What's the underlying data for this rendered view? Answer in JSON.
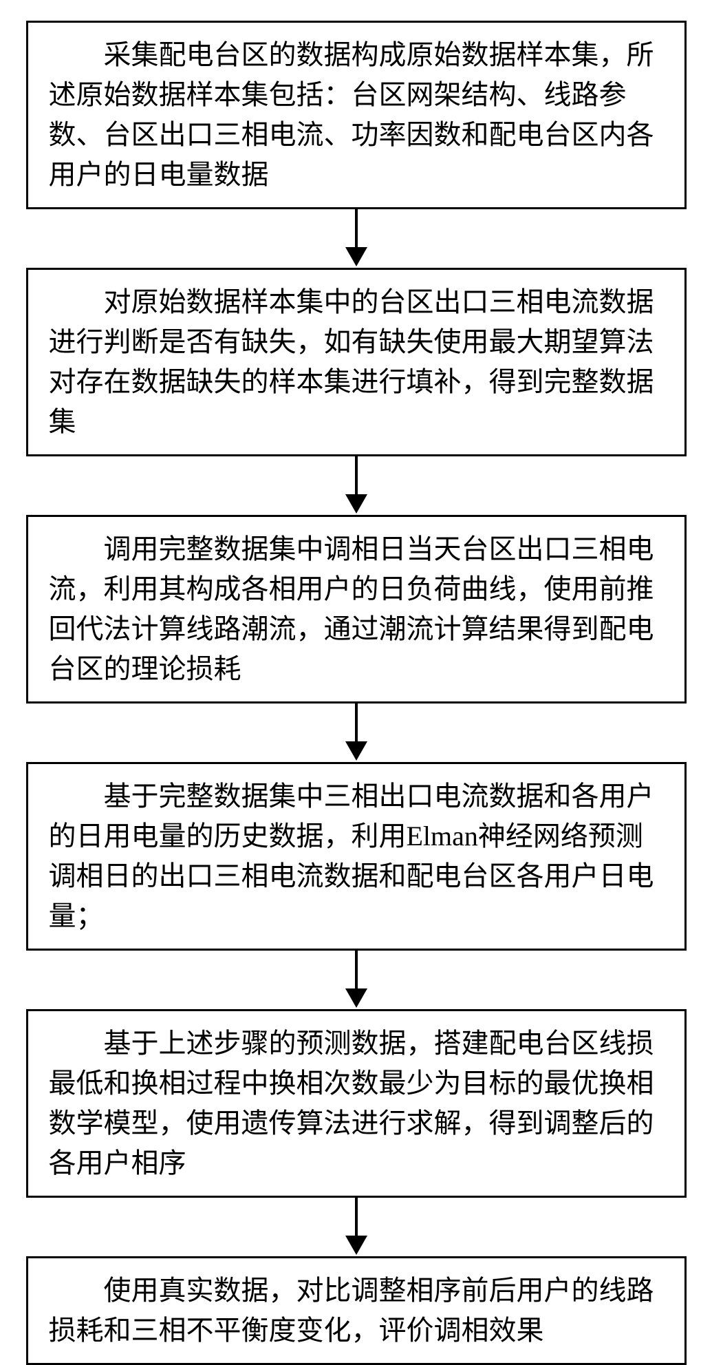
{
  "flowchart": {
    "type": "flowchart",
    "direction": "vertical",
    "background_color": "#ffffff",
    "border_color": "#000000",
    "border_width": 3,
    "text_color": "#000000",
    "font_size": 40,
    "font_family": "SimSun",
    "arrow_color": "#000000",
    "nodes": [
      {
        "id": "step1",
        "text": "采集配电台区的数据构成原始数据样本集，所述原始数据样本集包括：台区网架结构、线路参数、台区出口三相电流、功率因数和配电台区内各用户的日电量数据"
      },
      {
        "id": "step2",
        "text": "对原始数据样本集中的台区出口三相电流数据进行判断是否有缺失，如有缺失使用最大期望算法对存在数据缺失的样本集进行填补，得到完整数据集"
      },
      {
        "id": "step3",
        "text": "调用完整数据集中调相日当天台区出口三相电流，利用其构成各相用户的日负荷曲线，使用前推回代法计算线路潮流，通过潮流计算结果得到配电台区的理论损耗"
      },
      {
        "id": "step4",
        "text": "基于完整数据集中三相出口电流数据和各用户的日用电量的历史数据，利用Elman神经网络预测调相日的出口三相电流数据和配电台区各用户日电量；"
      },
      {
        "id": "step5",
        "text": "基于上述步骤的预测数据，搭建配电台区线损最低和换相过程中换相次数最少为目标的最优换相数学模型，使用遗传算法进行求解，得到调整后的各用户相序"
      },
      {
        "id": "step6",
        "text": "使用真实数据，对比调整相序前后用户的线路损耗和三相不平衡度变化，评价调相效果"
      }
    ],
    "edges": [
      {
        "from": "step1",
        "to": "step2"
      },
      {
        "from": "step2",
        "to": "step3"
      },
      {
        "from": "step3",
        "to": "step4"
      },
      {
        "from": "step4",
        "to": "step5"
      },
      {
        "from": "step5",
        "to": "step6"
      }
    ]
  }
}
